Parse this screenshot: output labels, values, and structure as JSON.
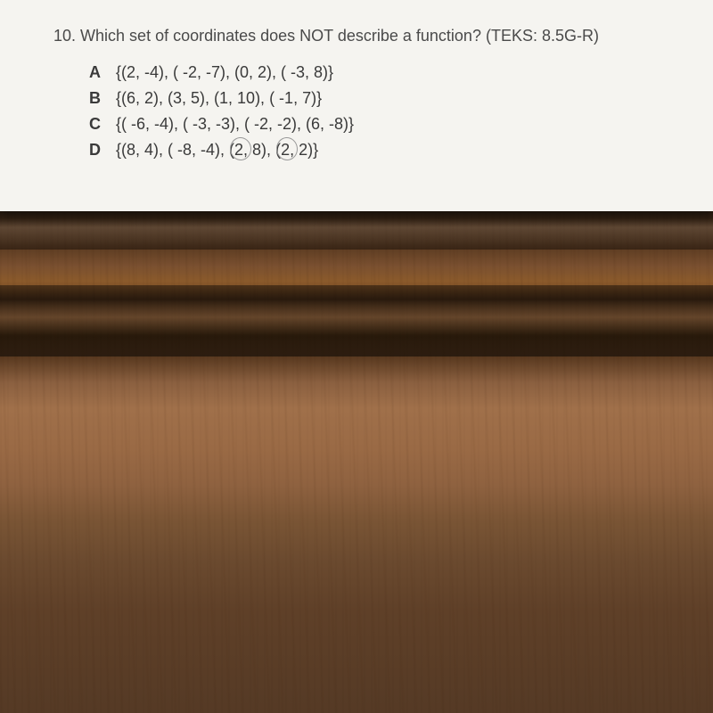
{
  "question": {
    "number": "10.",
    "text": "Which set of coordinates does NOT describe a function? (TEKS: 8.5G-R)"
  },
  "options": [
    {
      "label": "A",
      "text": "{(2, -4), ( -2, -7), (0, 2), ( -3, 8)}"
    },
    {
      "label": "B",
      "text": "{(6, 2), (3, 5), (1, 10), ( -1, 7)}"
    },
    {
      "label": "C",
      "text": "{( -6, -4), ( -3, -3), ( -2, -2), (6, -8)}"
    },
    {
      "label": "D",
      "prefix": "{(8, 4), ( -8, -4), (",
      "circled1": "2",
      "mid": ", 8), (",
      "circled2": "2",
      "suffix": ", 2)}"
    }
  ],
  "colors": {
    "paper_bg": "#f5f4f0",
    "text_color": "#4a4a4a",
    "wood_base": "#8b5a2b",
    "red_fabric": "#c92a3a"
  }
}
